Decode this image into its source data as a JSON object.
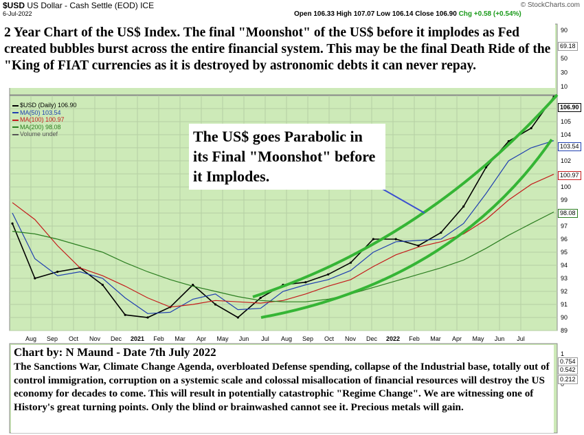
{
  "header": {
    "ticker": "$USD",
    "name": "US Dollar - Cash Settle (EOD)",
    "exchange": "ICE",
    "date": "6-Jul-2022",
    "quote": "Open 106.33  High 107.07  Low 106.14  Close 106.90  Chg +0.58 (+0.54%)",
    "quote_open": "Open 106.33  High 107.07  Low 106.14  Close 106.90",
    "quote_chg": "Chg +0.58 (+0.54%)",
    "brand": "© StockCharts.com"
  },
  "notes": {
    "top": "2 Year Chart of the US$ Index. The final \"Moonshot\" of the US$ before it implodes as Fed created bubbles burst across the entire financial system. This may be the final Death Ride of the \"King of FIAT currencies as it is destroyed by astronomic debts it can never repay.",
    "middle": "The US$ goes Parabolic in its Final \"Moonshot\" before it Implodes.",
    "bottom_title": "Chart by: N Maund - Date 7th July 2022",
    "bottom_body": "The Sanctions War, Climate Change Agenda, overbloated Defense spending, collapse of the Industrial base, totally out of control immigration, corruption on a systemic scale and colossal misallocation of financial resources will destroy the US economy for decades to come. This will result in potentially catastrophic \"Regime Change\".  We are witnessing one of History's great turning points. Only the blind or brainwashed cannot see it. Precious metals will gain."
  },
  "legend": [
    {
      "label": "$USD (Daily) 106.90",
      "color": "#000000"
    },
    {
      "label": "MA(50) 103.54",
      "color": "#1f3fb0"
    },
    {
      "label": "MA(100) 100.97",
      "color": "#c41a1a"
    },
    {
      "label": "MA(200) 98.08",
      "color": "#2a7d1f"
    },
    {
      "label": "Volume undef",
      "color": "#555555"
    }
  ],
  "price_tags": {
    "close": "106.90",
    "ma50": "103.54",
    "ma100": "100.97",
    "ma200": "98.08"
  },
  "top_panel_tags": [
    "69.18"
  ],
  "bottom_panel_tags": [
    "0.754",
    "0.542",
    "0.212"
  ],
  "colors": {
    "panel_bg": "#cdeab8",
    "trend_green": "#35b535",
    "ma50": "#1f3fb0",
    "ma100": "#c41a1a",
    "ma200": "#2a7d1f",
    "arrow": "#3b4fd0"
  },
  "chart_data": {
    "type": "line",
    "title": "$USD US Dollar - Cash Settle (EOD)",
    "x_tick_labels": [
      "Aug",
      "Sep",
      "Oct",
      "Nov",
      "Dec",
      "2021",
      "Feb",
      "Mar",
      "Apr",
      "May",
      "Jun",
      "Jul",
      "Aug",
      "Sep",
      "Oct",
      "Nov",
      "Dec",
      "2022",
      "Feb",
      "Mar",
      "Apr",
      "May",
      "Jun",
      "Jul"
    ],
    "y_tick_labels": [
      "89",
      "90",
      "91",
      "92",
      "93",
      "94",
      "95",
      "96",
      "97",
      "98",
      "99",
      "100",
      "101",
      "102",
      "103",
      "104",
      "105",
      "106"
    ],
    "ylim": [
      89,
      107
    ],
    "top_panel_ticks": [
      "90",
      "70",
      "50",
      "30",
      "10"
    ],
    "bottom_panel_ticks": [
      "1",
      "0.5",
      "0"
    ],
    "x": [
      "2020-07",
      "2020-08",
      "2020-09",
      "2020-10",
      "2020-11",
      "2020-12",
      "2021-01",
      "2021-02",
      "2021-03",
      "2021-04",
      "2021-05",
      "2021-06",
      "2021-07",
      "2021-08",
      "2021-09",
      "2021-10",
      "2021-11",
      "2021-12",
      "2022-01",
      "2022-02",
      "2022-03",
      "2022-04",
      "2022-05",
      "2022-06",
      "2022-07"
    ],
    "series": [
      {
        "name": "$USD (Daily) 106.90",
        "values": [
          97.2,
          93.0,
          93.5,
          93.8,
          92.5,
          90.2,
          90.0,
          90.8,
          92.5,
          91.0,
          90.0,
          91.5,
          92.5,
          92.7,
          93.3,
          94.2,
          96.0,
          96.0,
          95.5,
          96.5,
          98.5,
          101.5,
          103.5,
          104.5,
          106.9
        ]
      },
      {
        "name": "MA(50) 103.54",
        "values": [
          98.0,
          94.5,
          93.2,
          93.5,
          93.0,
          91.5,
          90.3,
          90.4,
          91.4,
          91.8,
          90.6,
          90.7,
          92.0,
          92.5,
          92.9,
          93.6,
          95.0,
          95.8,
          95.9,
          96.0,
          97.2,
          99.5,
          102.0,
          103.0,
          103.54
        ]
      },
      {
        "name": "MA(100) 100.97",
        "values": [
          98.8,
          97.5,
          95.5,
          93.8,
          93.2,
          92.4,
          91.5,
          90.8,
          91.0,
          91.3,
          91.2,
          91.1,
          91.3,
          91.8,
          92.4,
          92.9,
          93.9,
          94.8,
          95.4,
          95.8,
          96.4,
          97.5,
          99.0,
          100.2,
          100.97
        ]
      },
      {
        "name": "MA(200) 98.08",
        "values": [
          96.6,
          96.4,
          96.0,
          95.5,
          95.0,
          94.2,
          93.5,
          92.9,
          92.4,
          92.0,
          91.6,
          91.3,
          91.2,
          91.2,
          91.4,
          91.8,
          92.3,
          92.8,
          93.3,
          93.8,
          94.4,
          95.3,
          96.3,
          97.2,
          98.08
        ]
      }
    ],
    "grid": true,
    "legend_position": "top-left",
    "annotations": [
      "upper parabolic trend line",
      "lower parabolic trend line",
      "arrow"
    ]
  }
}
